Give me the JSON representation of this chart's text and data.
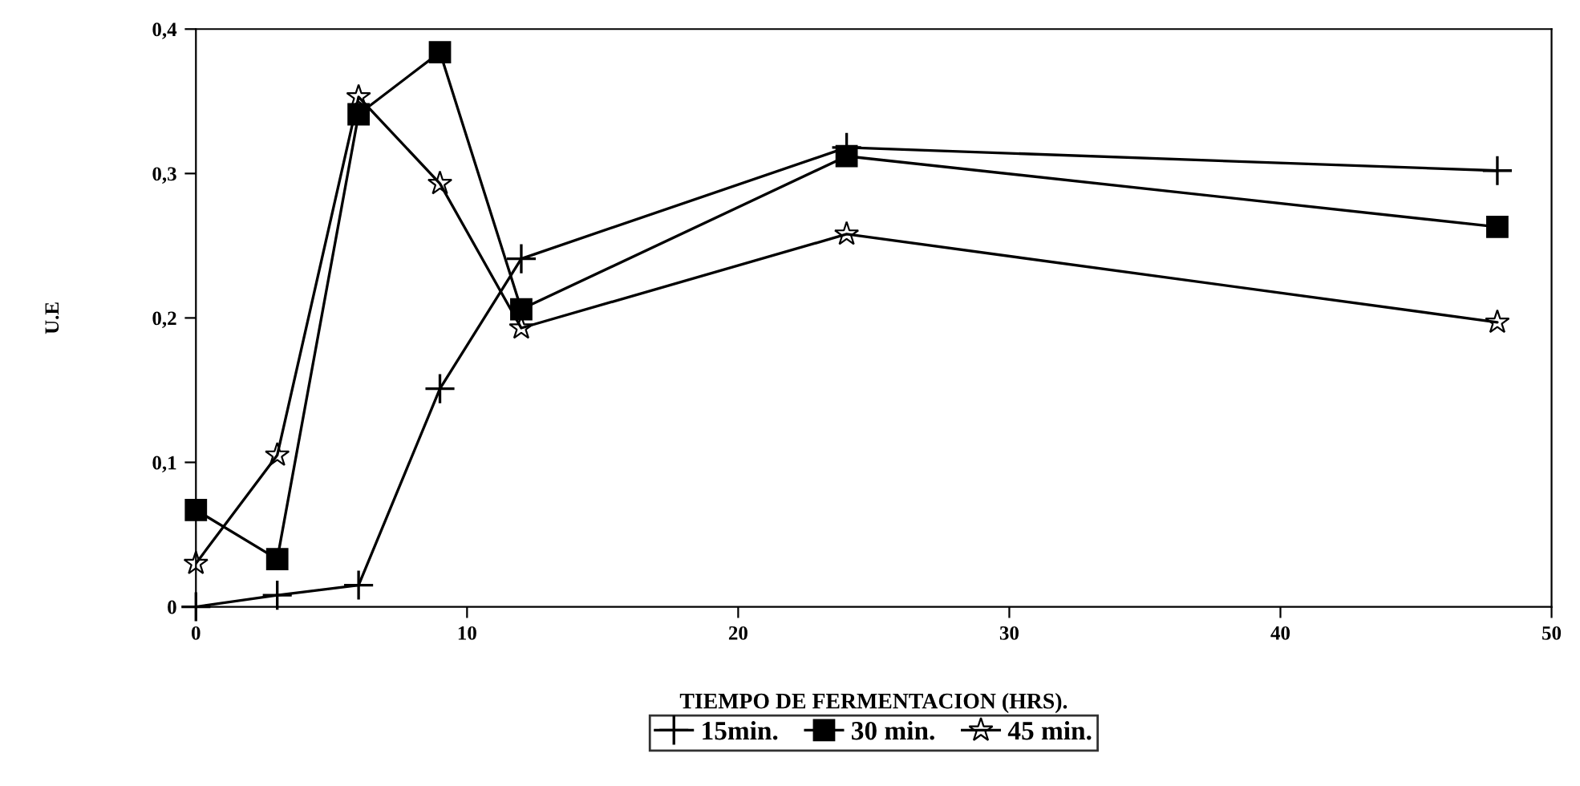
{
  "chart_data": {
    "type": "line",
    "xlabel": "TIEMPO DE FERMENTACION (HRS).",
    "ylabel": "U.E",
    "x": [
      0,
      3,
      6,
      9,
      12,
      24,
      48
    ],
    "series": [
      {
        "name": "15min.",
        "color": "#000000",
        "marker": "cross",
        "values": [
          0,
          0.008,
          0.015,
          0.151,
          0.241,
          0.318,
          0.302
        ]
      },
      {
        "name": "30 min.",
        "color": "#000000",
        "marker": "square",
        "values": [
          0.067,
          0.033,
          0.341,
          0.384,
          0.206,
          0.312,
          0.263
        ]
      },
      {
        "name": "45 min.",
        "color": "#000000",
        "marker": "star",
        "values": [
          0.03,
          0.105,
          0.353,
          0.293,
          0.193,
          0.258,
          0.197
        ]
      }
    ],
    "xlim": [
      0,
      50
    ],
    "xticks": [
      0,
      10,
      20,
      30,
      40,
      50
    ],
    "ylim": [
      0,
      0.4
    ],
    "yticks": [
      {
        "value": 0,
        "label": "0"
      },
      {
        "value": 0.1,
        "label": "0,1"
      },
      {
        "value": 0.2,
        "label": "0,2"
      },
      {
        "value": 0.3,
        "label": "0,3"
      },
      {
        "value": 0.4,
        "label": "0,4"
      }
    ],
    "grid": false,
    "legend": "bottom",
    "line_style": "solid"
  }
}
